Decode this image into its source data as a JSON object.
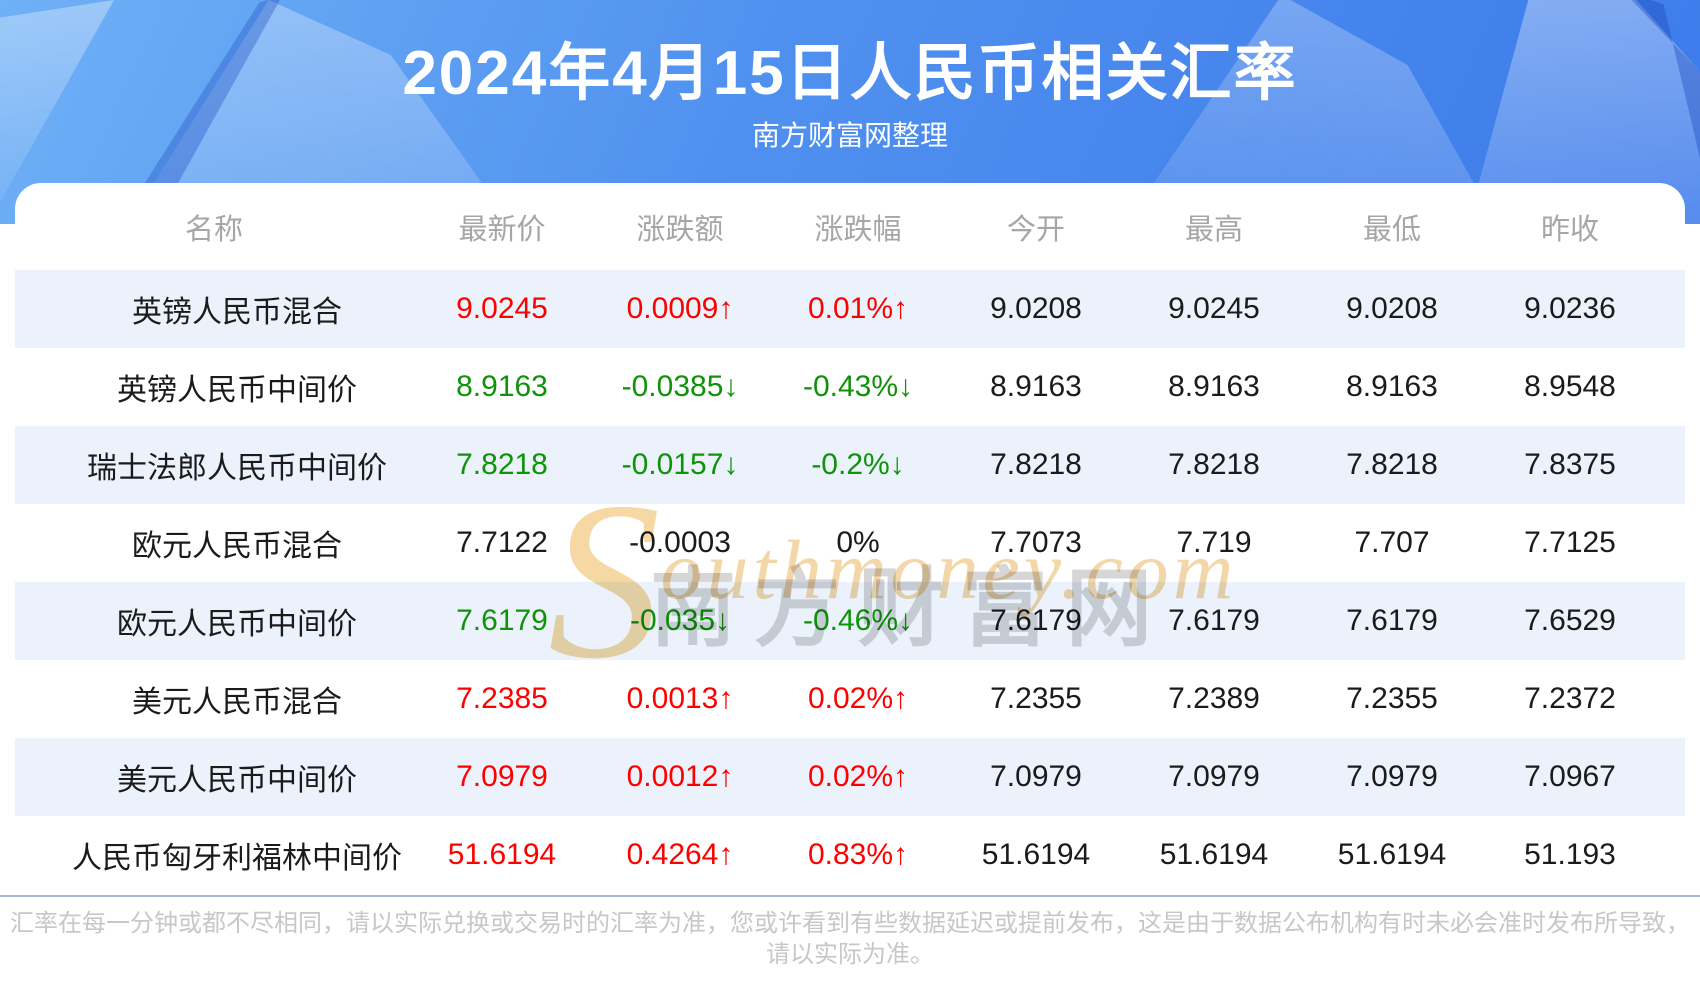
{
  "banner": {
    "title": "2024年4月15日人民币相关汇率",
    "subtitle": "南方财富网整理"
  },
  "watermark": {
    "initial": "S",
    "rest": "outhmoney.com",
    "cn": "南方财富网"
  },
  "chart_data": {
    "type": "table",
    "title": "2024年4月15日人民币相关汇率",
    "subtitle": "南方财富网整理",
    "columns": [
      "名称",
      "最新价",
      "涨跌额",
      "涨跌幅",
      "今开",
      "最高",
      "最低",
      "昨收"
    ],
    "rows": [
      {
        "name": "英镑人民币混合",
        "latest": "9.0245",
        "change": "0.0009↑",
        "pct": "0.01%↑",
        "open": "9.0208",
        "high": "9.0245",
        "low": "9.0208",
        "prev": "9.0236",
        "trend": "up"
      },
      {
        "name": "英镑人民币中间价",
        "latest": "8.9163",
        "change": "-0.0385↓",
        "pct": "-0.43%↓",
        "open": "8.9163",
        "high": "8.9163",
        "low": "8.9163",
        "prev": "8.9548",
        "trend": "down"
      },
      {
        "name": "瑞士法郎人民币中间价",
        "latest": "7.8218",
        "change": "-0.0157↓",
        "pct": "-0.2%↓",
        "open": "7.8218",
        "high": "7.8218",
        "low": "7.8218",
        "prev": "7.8375",
        "trend": "down"
      },
      {
        "name": "欧元人民币混合",
        "latest": "7.7122",
        "change": "-0.0003",
        "pct": "0%",
        "open": "7.7073",
        "high": "7.719",
        "low": "7.707",
        "prev": "7.7125",
        "trend": "flat"
      },
      {
        "name": "欧元人民币中间价",
        "latest": "7.6179",
        "change": "-0.035↓",
        "pct": "-0.46%↓",
        "open": "7.6179",
        "high": "7.6179",
        "low": "7.6179",
        "prev": "7.6529",
        "trend": "down"
      },
      {
        "name": "美元人民币混合",
        "latest": "7.2385",
        "change": "0.0013↑",
        "pct": "0.02%↑",
        "open": "7.2355",
        "high": "7.2389",
        "low": "7.2355",
        "prev": "7.2372",
        "trend": "up"
      },
      {
        "name": "美元人民币中间价",
        "latest": "7.0979",
        "change": "0.0012↑",
        "pct": "0.02%↑",
        "open": "7.0979",
        "high": "7.0979",
        "low": "7.0979",
        "prev": "7.0967",
        "trend": "up"
      },
      {
        "name": "人民币匈牙利福林中间价",
        "latest": "51.6194",
        "change": "0.4264↑",
        "pct": "0.83%↑",
        "open": "51.6194",
        "high": "51.6194",
        "low": "51.6194",
        "prev": "51.193",
        "trend": "up"
      }
    ],
    "layout": {
      "striped_rows": "odd",
      "stripe_color": "#ebf2fc",
      "grid": false
    }
  },
  "colors": {
    "up": "#fe0000",
    "down": "#0e9309",
    "neutral": "#1b1b1b",
    "banner_blue": "#4a8cee",
    "stripe": "#ebf2fc",
    "header_text": "#a6a6a6",
    "separator": "#a2bad2",
    "footer_text": "#c7c7c7"
  },
  "footer": {
    "line1": "汇率在每一分钟或都不尽相同，请以实际兑换或交易时的汇率为准，您或许看到有些数据延迟或提前发布，这是由于数据公布机构有时未必会准时发布所导致，",
    "line2": "请以实际为准。"
  }
}
